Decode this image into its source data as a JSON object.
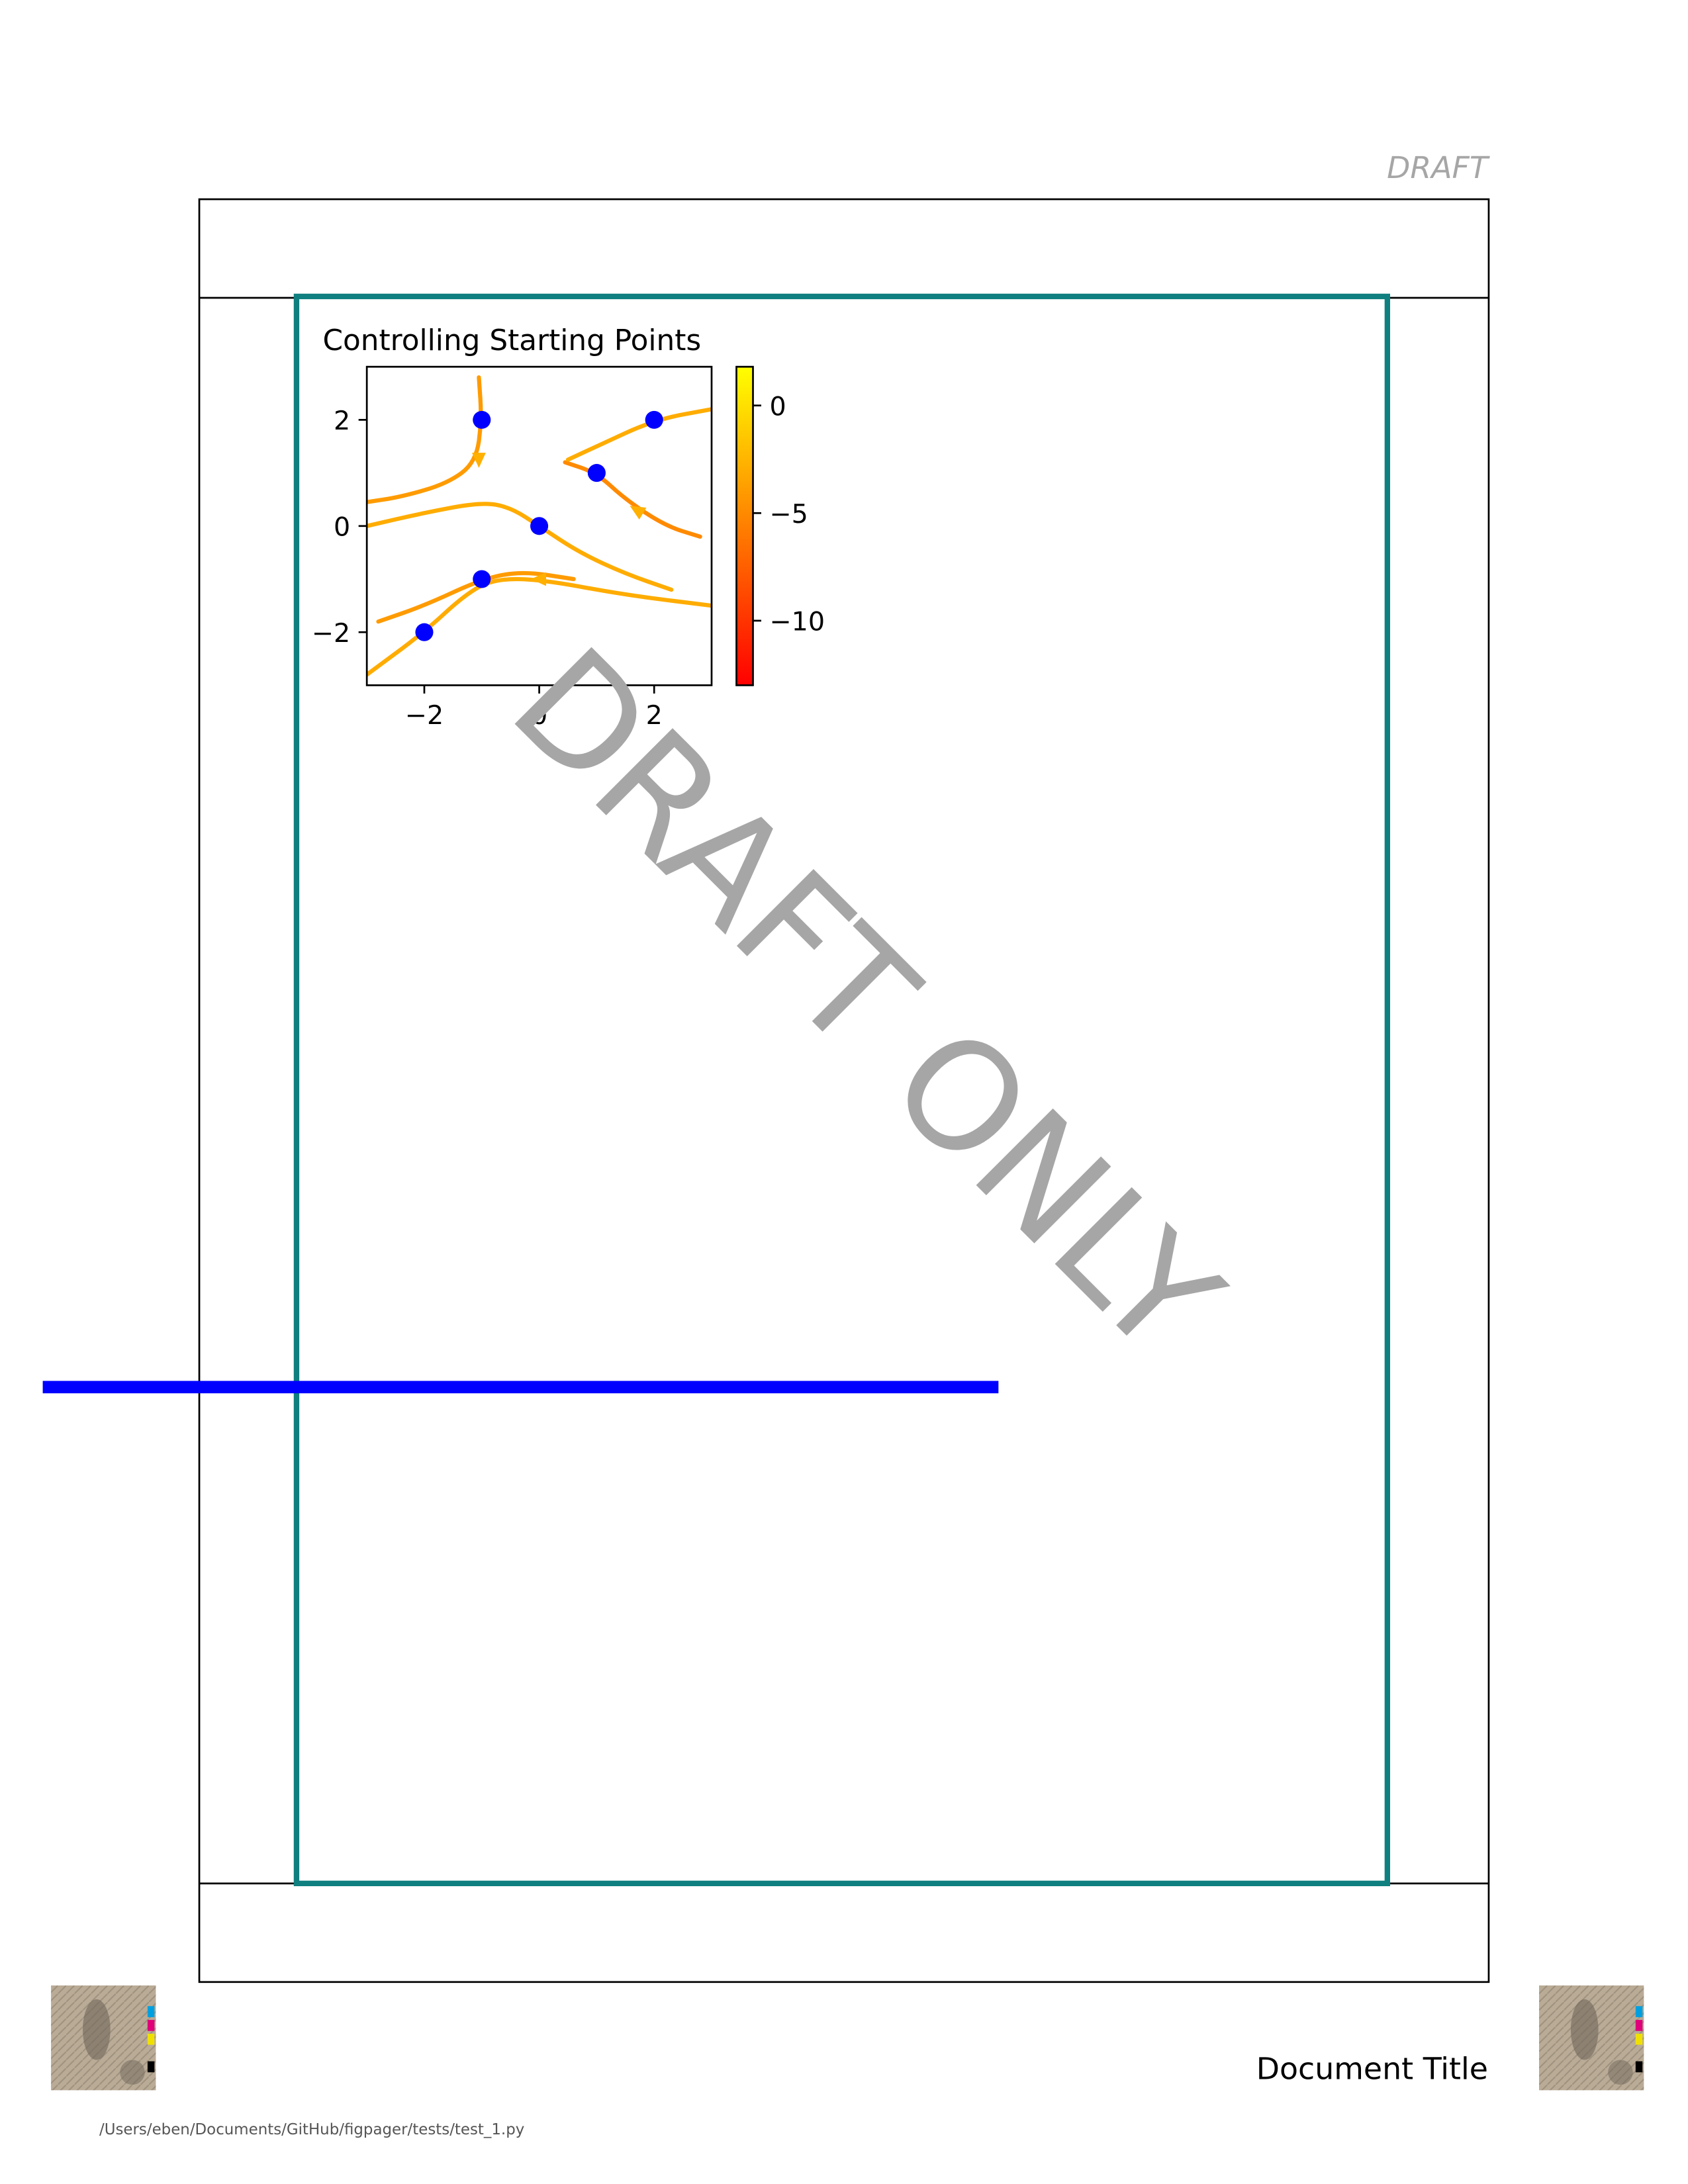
{
  "page": {
    "header_draft": "DRAFT",
    "watermark": "DRAFT ONLY",
    "document_title": "Document Title",
    "file_path": "/Users/eben/Documents/GitHub/figpager/tests/test_1.py",
    "frame_color": "#0f7f7f",
    "rule_color": "#0000ff",
    "watermark_color": "#a6a6a6"
  },
  "chart_data": {
    "type": "streamplot",
    "title": "Controlling Starting Points",
    "xlim": [
      -3,
      3
    ],
    "ylim": [
      -3,
      3
    ],
    "x_ticks": [
      -2,
      0,
      2
    ],
    "y_ticks": [
      -2,
      0,
      2
    ],
    "x_tick_labels": [
      "−2",
      "0",
      "2"
    ],
    "y_tick_labels": [
      "−2",
      "0",
      "2"
    ],
    "colorbar": {
      "cmap": "autumn",
      "range": [
        -13,
        1.8
      ],
      "ticks": [
        0,
        -5,
        -10
      ],
      "tick_labels": [
        "0",
        "−5",
        "−10"
      ]
    },
    "start_points": [
      [
        -1,
        2
      ],
      [
        2,
        2
      ],
      [
        1,
        1
      ],
      [
        0,
        0
      ],
      [
        -1,
        -1
      ],
      [
        -2,
        -2
      ]
    ],
    "start_point_color": "#0000ff",
    "streamlines": [
      {
        "points": [
          [
            -1.05,
            2.8
          ],
          [
            -1.0,
            2.0
          ],
          [
            -1.1,
            1.2
          ],
          [
            -1.6,
            0.8
          ],
          [
            -2.4,
            0.55
          ],
          [
            -3.0,
            0.45
          ]
        ],
        "speed": -4
      },
      {
        "points": [
          [
            -3.0,
            0.0
          ],
          [
            -2.0,
            0.25
          ],
          [
            -1.0,
            0.45
          ],
          [
            -0.5,
            0.35
          ],
          [
            0.0,
            0.0
          ],
          [
            0.7,
            -0.5
          ],
          [
            1.5,
            -0.9
          ],
          [
            2.3,
            -1.2
          ]
        ],
        "speed": -3
      },
      {
        "points": [
          [
            0.45,
            1.2
          ],
          [
            1.0,
            1.0
          ],
          [
            1.5,
            0.5
          ],
          [
            2.2,
            0.0
          ],
          [
            2.8,
            -0.2
          ]
        ],
        "speed": -5
      },
      {
        "points": [
          [
            0.5,
            1.25
          ],
          [
            1.0,
            1.5
          ],
          [
            2.0,
            2.0
          ],
          [
            3.0,
            2.2
          ]
        ],
        "speed": -3
      },
      {
        "points": [
          [
            -2.8,
            -1.8
          ],
          [
            -2.0,
            -1.5
          ],
          [
            -1.0,
            -1.0
          ],
          [
            -0.3,
            -0.85
          ],
          [
            0.6,
            -1.0
          ]
        ],
        "speed": -4
      },
      {
        "points": [
          [
            -3.0,
            -2.8
          ],
          [
            -2.0,
            -2.0
          ],
          [
            -1.3,
            -1.3
          ],
          [
            -0.8,
            -1.0
          ],
          [
            0.0,
            -1.0
          ],
          [
            1.5,
            -1.3
          ],
          [
            3.0,
            -1.5
          ]
        ],
        "speed": -3
      }
    ],
    "arrows": [
      {
        "at": [
          -1.05,
          1.25
        ],
        "dir": [
          0,
          -1
        ]
      },
      {
        "at": [
          1.7,
          0.3
        ],
        "dir": [
          -1,
          0.6
        ]
      },
      {
        "at": [
          0.0,
          -1.0
        ],
        "dir": [
          -1,
          0
        ]
      }
    ]
  }
}
